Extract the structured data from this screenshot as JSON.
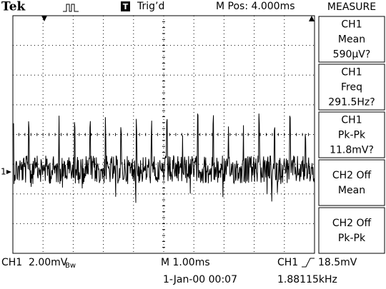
{
  "header": {
    "brand": "Tek",
    "trigger_icon": "T",
    "trigger_status": "Trig’d",
    "position": "M Pos: 4.000ms"
  },
  "menu": {
    "title": "MEASURE",
    "items": [
      {
        "lines": [
          "CH1",
          "Mean",
          "590µV?"
        ]
      },
      {
        "lines": [
          "CH1",
          "Freq",
          "291.5Hz?"
        ]
      },
      {
        "lines": [
          "CH1",
          "Pk-Pk",
          "11.8mV?"
        ]
      },
      {
        "lines": [
          "CH2 Off",
          "Mean"
        ]
      },
      {
        "lines": [
          "CH2 Off",
          "Pk-Pk"
        ]
      }
    ]
  },
  "marker": {
    "channel": "1"
  },
  "footer": {
    "channel": "CH1",
    "scale": "2.00mV",
    "bandwidth": "Bw",
    "timebase": "M 1.00ms",
    "trigger_channel": "CH1",
    "trigger_level": "18.5mV",
    "date": "1-Jan-00 00:07",
    "frequency": "1.88115kHz"
  }
}
